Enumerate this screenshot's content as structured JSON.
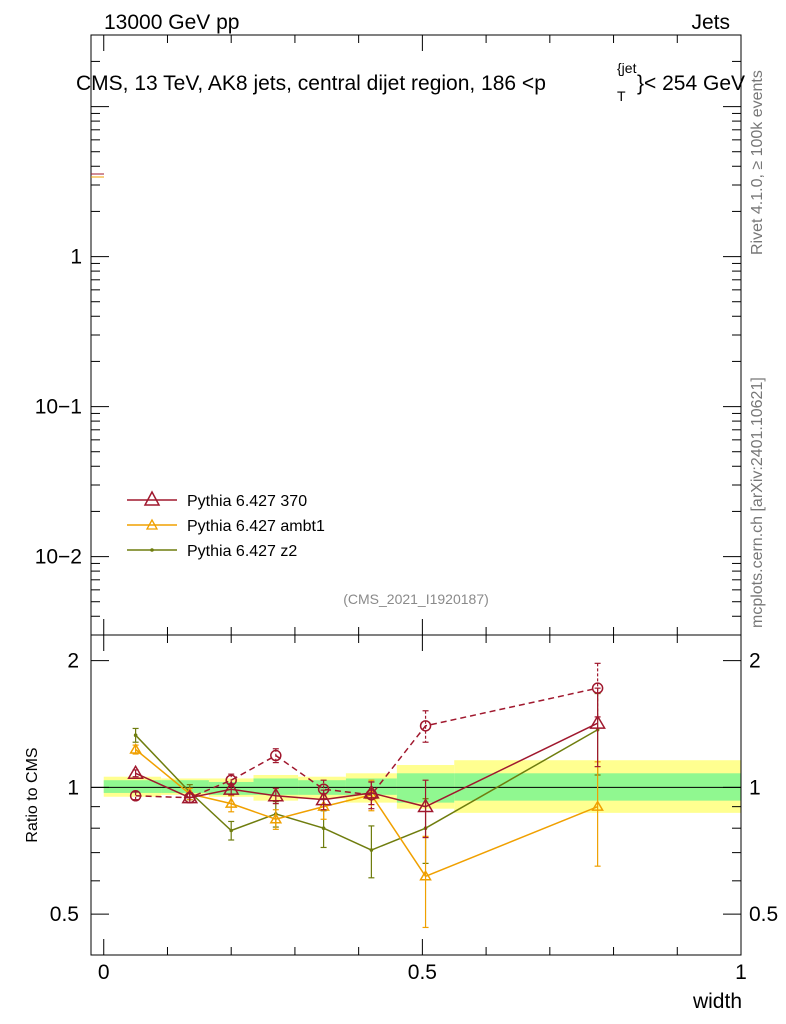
{
  "header": {
    "left": "13000 GeV pp",
    "right": "Jets",
    "title_main": "CMS, 13 TeV, AK8 jets, central dijet region, 186 <p",
    "title_sup": "{jet",
    "title_sub": "T",
    "title_tail": "}< 254 GeV"
  },
  "side": {
    "rivet": "Rivet 4.1.0, ≥ 100k events",
    "mcplots": "mcplots.cern.ch [arXiv:2401.10621]"
  },
  "watermark": "(CMS_2021_I1920187)",
  "colors": {
    "p370": "#a0182e",
    "ambt1": "#f0a000",
    "z2": "#6f7d0e",
    "band_inner": "#90f890",
    "band_outer": "#ffff90"
  },
  "chart_data": [
    {
      "type": "line",
      "panel": "main",
      "yscale": "log",
      "ylim": [
        0.003,
        30
      ],
      "xlim": [
        -0.02,
        1.0
      ],
      "ytick_labels": [
        "10−2",
        "10−1",
        "1"
      ],
      "ytick_values": [
        0.01,
        0.1,
        1
      ],
      "legend": {
        "position": "bottom-left",
        "entries": [
          "Pythia 6.427 370",
          "Pythia 6.427 ambt1",
          "Pythia 6.427 z2"
        ]
      }
    },
    {
      "type": "line",
      "panel": "ratio",
      "ylabel": "Ratio to CMS",
      "xlabel": "width",
      "yscale": "log",
      "ylim": [
        0.4,
        2.3
      ],
      "xlim": [
        -0.02,
        1.0
      ],
      "ytick_labels": [
        "0.5",
        "1",
        "2"
      ],
      "ytick_values": [
        0.5,
        1,
        2
      ],
      "xtick_labels": [
        "0",
        "0.5",
        "1"
      ],
      "xtick_values": [
        0,
        0.5,
        1
      ],
      "x": [
        0.05,
        0.135,
        0.2,
        0.27,
        0.345,
        0.42,
        0.505,
        0.775
      ],
      "band": [
        {
          "x0": 0.0,
          "x1": 0.09,
          "in_lo": 0.97,
          "in_hi": 1.04,
          "out_lo": 0.95,
          "out_hi": 1.06
        },
        {
          "x0": 0.09,
          "x1": 0.165,
          "in_lo": 0.97,
          "in_hi": 1.04,
          "out_lo": 0.96,
          "out_hi": 1.05
        },
        {
          "x0": 0.165,
          "x1": 0.235,
          "in_lo": 0.96,
          "in_hi": 1.03,
          "out_lo": 0.95,
          "out_hi": 1.05
        },
        {
          "x0": 0.235,
          "x1": 0.305,
          "in_lo": 0.96,
          "in_hi": 1.05,
          "out_lo": 0.93,
          "out_hi": 1.07
        },
        {
          "x0": 0.305,
          "x1": 0.38,
          "in_lo": 0.96,
          "in_hi": 1.04,
          "out_lo": 0.94,
          "out_hi": 1.06
        },
        {
          "x0": 0.38,
          "x1": 0.46,
          "in_lo": 0.96,
          "in_hi": 1.05,
          "out_lo": 0.92,
          "out_hi": 1.08
        },
        {
          "x0": 0.46,
          "x1": 0.55,
          "in_lo": 0.92,
          "in_hi": 1.08,
          "out_lo": 0.89,
          "out_hi": 1.13
        },
        {
          "x0": 0.55,
          "x1": 1.0,
          "in_lo": 0.93,
          "in_hi": 1.08,
          "out_lo": 0.87,
          "out_hi": 1.16
        }
      ],
      "series": [
        {
          "name": "Pythia 6.427 370",
          "style": "dashed",
          "marker": "circle",
          "values": [
            0.955,
            0.945,
            1.04,
            1.19,
            0.99,
            0.96,
            1.4,
            1.72
          ],
          "err": [
            0.02,
            0.025,
            0.035,
            0.045,
            0.05,
            0.07,
            0.12,
            0.25
          ]
        },
        {
          "name": "Pythia 6.427 370",
          "style": "solid",
          "marker": "triangle",
          "values": [
            1.08,
            0.945,
            0.99,
            0.955,
            0.935,
            0.97,
            0.9,
            1.42
          ],
          "err": [
            0.02,
            0.025,
            0.03,
            0.04,
            0.05,
            0.06,
            0.14,
            0.3
          ]
        },
        {
          "name": "Pythia 6.427 ambt1",
          "style": "solid",
          "marker": "triangle",
          "values": [
            1.23,
            0.965,
            0.915,
            0.84,
            0.9,
            0.96,
            0.615,
            0.9
          ],
          "err": [
            0.03,
            0.03,
            0.04,
            0.045,
            0.06,
            0.08,
            0.15,
            0.25
          ]
        },
        {
          "name": "Pythia 6.427 z2",
          "style": "solid",
          "marker": "dot",
          "values": [
            1.33,
            0.975,
            0.79,
            0.865,
            0.8,
            0.71,
            0.8,
            1.37
          ],
          "err": [
            0.05,
            0.04,
            0.04,
            0.06,
            0.08,
            0.1,
            0.14,
            0.3
          ]
        }
      ]
    }
  ]
}
